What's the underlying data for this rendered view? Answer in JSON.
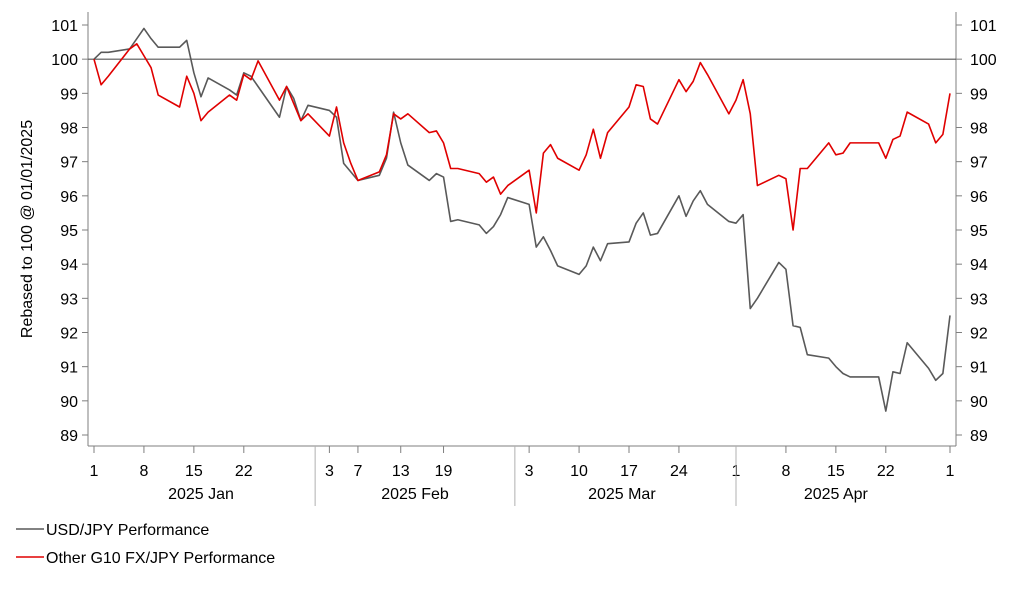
{
  "chart_data": {
    "type": "line",
    "ylabel": "Rebased to 100 @ 01/01/2025",
    "ylim": [
      89,
      101
    ],
    "yticks": [
      "89",
      "90",
      "91",
      "92",
      "93",
      "94",
      "95",
      "96",
      "97",
      "98",
      "99",
      "100",
      "101"
    ],
    "reference_line": 100,
    "xlim": [
      "2025-01-01",
      "2025-05-01"
    ],
    "x_day_ticks": [
      "1",
      "8",
      "15",
      "22",
      "3",
      "7",
      "13",
      "19",
      "3",
      "10",
      "17",
      "24",
      "1",
      "8",
      "15",
      "22",
      "1"
    ],
    "x_day_tick_dates": [
      "2025-01-01",
      "2025-01-08",
      "2025-01-15",
      "2025-01-22",
      "2025-02-03",
      "2025-02-07",
      "2025-02-13",
      "2025-02-19",
      "2025-03-03",
      "2025-03-10",
      "2025-03-17",
      "2025-03-24",
      "2025-04-01",
      "2025-04-08",
      "2025-04-15",
      "2025-04-22",
      "2025-05-01"
    ],
    "x_month_labels": [
      "2025 Jan",
      "2025 Feb",
      "2025 Mar",
      "2025 Apr"
    ],
    "x_month_label_dates": [
      "2025-01-16",
      "2025-02-15",
      "2025-03-16",
      "2025-04-15"
    ],
    "x_month_dividers": [
      "2025-02-01",
      "2025-03-01",
      "2025-04-01"
    ],
    "legend_position": "bottom-left",
    "series": [
      {
        "name": "USD/JPY Performance",
        "color": "#595959",
        "points": [
          [
            "2025-01-01",
            100.0
          ],
          [
            "2025-01-02",
            100.2
          ],
          [
            "2025-01-03",
            100.2
          ],
          [
            "2025-01-06",
            100.3
          ],
          [
            "2025-01-07",
            100.6
          ],
          [
            "2025-01-08",
            100.9
          ],
          [
            "2025-01-09",
            100.6
          ],
          [
            "2025-01-10",
            100.35
          ],
          [
            "2025-01-13",
            100.35
          ],
          [
            "2025-01-14",
            100.55
          ],
          [
            "2025-01-15",
            99.6
          ],
          [
            "2025-01-16",
            98.9
          ],
          [
            "2025-01-17",
            99.45
          ],
          [
            "2025-01-20",
            99.1
          ],
          [
            "2025-01-21",
            98.95
          ],
          [
            "2025-01-22",
            99.6
          ],
          [
            "2025-01-23",
            99.5
          ],
          [
            "2025-01-24",
            99.2
          ],
          [
            "2025-01-27",
            98.3
          ],
          [
            "2025-01-28",
            99.2
          ],
          [
            "2025-01-29",
            98.85
          ],
          [
            "2025-01-30",
            98.2
          ],
          [
            "2025-01-31",
            98.65
          ],
          [
            "2025-02-03",
            98.5
          ],
          [
            "2025-02-04",
            98.3
          ],
          [
            "2025-02-05",
            96.95
          ],
          [
            "2025-02-06",
            96.7
          ],
          [
            "2025-02-07",
            96.45
          ],
          [
            "2025-02-10",
            96.6
          ],
          [
            "2025-02-11",
            97.1
          ],
          [
            "2025-02-12",
            98.45
          ],
          [
            "2025-02-13",
            97.55
          ],
          [
            "2025-02-14",
            96.9
          ],
          [
            "2025-02-17",
            96.45
          ],
          [
            "2025-02-18",
            96.65
          ],
          [
            "2025-02-19",
            96.55
          ],
          [
            "2025-02-20",
            95.25
          ],
          [
            "2025-02-21",
            95.3
          ],
          [
            "2025-02-24",
            95.15
          ],
          [
            "2025-02-25",
            94.9
          ],
          [
            "2025-02-26",
            95.1
          ],
          [
            "2025-02-27",
            95.45
          ],
          [
            "2025-02-28",
            95.95
          ],
          [
            "2025-03-03",
            95.75
          ],
          [
            "2025-03-04",
            94.5
          ],
          [
            "2025-03-05",
            94.8
          ],
          [
            "2025-03-06",
            94.4
          ],
          [
            "2025-03-07",
            93.95
          ],
          [
            "2025-03-10",
            93.7
          ],
          [
            "2025-03-11",
            93.95
          ],
          [
            "2025-03-12",
            94.5
          ],
          [
            "2025-03-13",
            94.1
          ],
          [
            "2025-03-14",
            94.6
          ],
          [
            "2025-03-17",
            94.65
          ],
          [
            "2025-03-18",
            95.2
          ],
          [
            "2025-03-19",
            95.5
          ],
          [
            "2025-03-20",
            94.85
          ],
          [
            "2025-03-21",
            94.9
          ],
          [
            "2025-03-24",
            96.0
          ],
          [
            "2025-03-25",
            95.4
          ],
          [
            "2025-03-26",
            95.85
          ],
          [
            "2025-03-27",
            96.15
          ],
          [
            "2025-03-28",
            95.75
          ],
          [
            "2025-03-31",
            95.25
          ],
          [
            "2025-04-01",
            95.2
          ],
          [
            "2025-04-02",
            95.45
          ],
          [
            "2025-04-03",
            92.7
          ],
          [
            "2025-04-04",
            93.0
          ],
          [
            "2025-04-07",
            94.05
          ],
          [
            "2025-04-08",
            93.85
          ],
          [
            "2025-04-09",
            92.2
          ],
          [
            "2025-04-10",
            92.15
          ],
          [
            "2025-04-11",
            91.35
          ],
          [
            "2025-04-14",
            91.25
          ],
          [
            "2025-04-15",
            91.0
          ],
          [
            "2025-04-16",
            90.8
          ],
          [
            "2025-04-17",
            90.7
          ],
          [
            "2025-04-18",
            90.7
          ],
          [
            "2025-04-21",
            90.7
          ],
          [
            "2025-04-22",
            89.7
          ],
          [
            "2025-04-23",
            90.85
          ],
          [
            "2025-04-24",
            90.8
          ],
          [
            "2025-04-25",
            91.7
          ],
          [
            "2025-04-28",
            90.95
          ],
          [
            "2025-04-29",
            90.6
          ],
          [
            "2025-04-30",
            90.8
          ],
          [
            "2025-05-01",
            92.5
          ]
        ]
      },
      {
        "name": "Other G10 FX/JPY Performance",
        "color": "#e00000",
        "points": [
          [
            "2025-01-01",
            100.0
          ],
          [
            "2025-01-02",
            99.25
          ],
          [
            "2025-01-03",
            99.5
          ],
          [
            "2025-01-06",
            100.3
          ],
          [
            "2025-01-07",
            100.45
          ],
          [
            "2025-01-08",
            100.1
          ],
          [
            "2025-01-09",
            99.75
          ],
          [
            "2025-01-10",
            98.95
          ],
          [
            "2025-01-13",
            98.6
          ],
          [
            "2025-01-14",
            99.5
          ],
          [
            "2025-01-15",
            99.0
          ],
          [
            "2025-01-16",
            98.2
          ],
          [
            "2025-01-17",
            98.45
          ],
          [
            "2025-01-20",
            98.95
          ],
          [
            "2025-01-21",
            98.8
          ],
          [
            "2025-01-22",
            99.55
          ],
          [
            "2025-01-23",
            99.4
          ],
          [
            "2025-01-24",
            99.95
          ],
          [
            "2025-01-27",
            98.8
          ],
          [
            "2025-01-28",
            99.2
          ],
          [
            "2025-01-29",
            98.7
          ],
          [
            "2025-01-30",
            98.2
          ],
          [
            "2025-01-31",
            98.4
          ],
          [
            "2025-02-03",
            97.75
          ],
          [
            "2025-02-04",
            98.6
          ],
          [
            "2025-02-05",
            97.55
          ],
          [
            "2025-02-06",
            96.95
          ],
          [
            "2025-02-07",
            96.45
          ],
          [
            "2025-02-10",
            96.7
          ],
          [
            "2025-02-11",
            97.2
          ],
          [
            "2025-02-12",
            98.4
          ],
          [
            "2025-02-13",
            98.25
          ],
          [
            "2025-02-14",
            98.4
          ],
          [
            "2025-02-17",
            97.85
          ],
          [
            "2025-02-18",
            97.9
          ],
          [
            "2025-02-19",
            97.55
          ],
          [
            "2025-02-20",
            96.8
          ],
          [
            "2025-02-21",
            96.8
          ],
          [
            "2025-02-24",
            96.65
          ],
          [
            "2025-02-25",
            96.4
          ],
          [
            "2025-02-26",
            96.55
          ],
          [
            "2025-02-27",
            96.05
          ],
          [
            "2025-02-28",
            96.3
          ],
          [
            "2025-03-03",
            96.75
          ],
          [
            "2025-03-04",
            95.5
          ],
          [
            "2025-03-05",
            97.25
          ],
          [
            "2025-03-06",
            97.5
          ],
          [
            "2025-03-07",
            97.1
          ],
          [
            "2025-03-10",
            96.75
          ],
          [
            "2025-03-11",
            97.2
          ],
          [
            "2025-03-12",
            97.95
          ],
          [
            "2025-03-13",
            97.1
          ],
          [
            "2025-03-14",
            97.85
          ],
          [
            "2025-03-17",
            98.6
          ],
          [
            "2025-03-18",
            99.25
          ],
          [
            "2025-03-19",
            99.2
          ],
          [
            "2025-03-20",
            98.25
          ],
          [
            "2025-03-21",
            98.1
          ],
          [
            "2025-03-24",
            99.4
          ],
          [
            "2025-03-25",
            99.05
          ],
          [
            "2025-03-26",
            99.35
          ],
          [
            "2025-03-27",
            99.9
          ],
          [
            "2025-03-28",
            99.55
          ],
          [
            "2025-03-31",
            98.4
          ],
          [
            "2025-04-01",
            98.8
          ],
          [
            "2025-04-02",
            99.4
          ],
          [
            "2025-04-03",
            98.4
          ],
          [
            "2025-04-04",
            96.3
          ],
          [
            "2025-04-07",
            96.6
          ],
          [
            "2025-04-08",
            96.5
          ],
          [
            "2025-04-09",
            95.0
          ],
          [
            "2025-04-10",
            96.8
          ],
          [
            "2025-04-11",
            96.8
          ],
          [
            "2025-04-14",
            97.55
          ],
          [
            "2025-04-15",
            97.2
          ],
          [
            "2025-04-16",
            97.25
          ],
          [
            "2025-04-17",
            97.55
          ],
          [
            "2025-04-18",
            97.55
          ],
          [
            "2025-04-21",
            97.55
          ],
          [
            "2025-04-22",
            97.1
          ],
          [
            "2025-04-23",
            97.65
          ],
          [
            "2025-04-24",
            97.75
          ],
          [
            "2025-04-25",
            98.45
          ],
          [
            "2025-04-28",
            98.1
          ],
          [
            "2025-04-29",
            97.55
          ],
          [
            "2025-04-30",
            97.8
          ],
          [
            "2025-05-01",
            99.0
          ]
        ]
      }
    ]
  }
}
